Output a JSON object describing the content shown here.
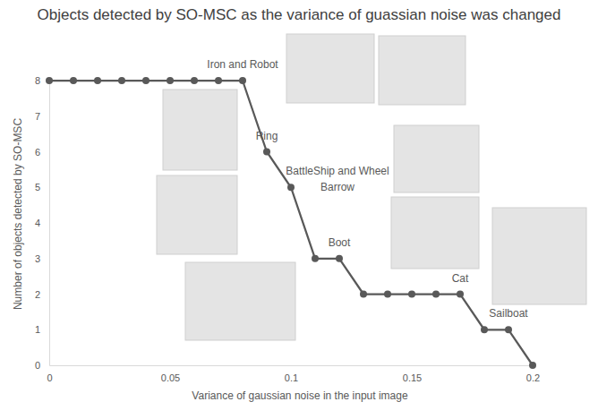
{
  "chart_data": {
    "type": "line",
    "title": "Objects detected by SO-MSC as the variance of guassian noise was changed",
    "x_label": "Variance of gaussian noise in the input image",
    "y_label": "Number of objects detected  by SO-MSC",
    "x": [
      0,
      0.01,
      0.02,
      0.03,
      0.04,
      0.05,
      0.06,
      0.07,
      0.08,
      0.09,
      0.1,
      0.11,
      0.12,
      0.13,
      0.14,
      0.15,
      0.16,
      0.17,
      0.18,
      0.19,
      0.2
    ],
    "values": [
      8,
      8,
      8,
      8,
      8,
      8,
      8,
      8,
      8,
      6,
      5,
      3,
      3,
      2,
      2,
      2,
      2,
      2,
      1,
      1,
      0
    ],
    "color": "#595959",
    "marker": "circle",
    "xlim": [
      0,
      0.2
    ],
    "xticks": [
      0,
      0.05,
      0.1,
      0.15,
      0.2
    ],
    "ylim": [
      0,
      8
    ],
    "yticks": [
      0,
      1,
      2,
      3,
      4,
      5,
      6,
      7,
      8
    ],
    "grid": false,
    "annotations": [
      {
        "text": "Iron and Robot",
        "x": 0.08,
        "y": 8
      },
      {
        "text": "Ring",
        "x": 0.09,
        "y": 6
      },
      {
        "text": "BattleShip and Wheel\nBarrow",
        "x": 0.1,
        "y": 5
      },
      {
        "text": "Boot",
        "x": 0.12,
        "y": 3
      },
      {
        "text": "Cat",
        "x": 0.17,
        "y": 2
      },
      {
        "text": "Sailboat",
        "x": 0.19,
        "y": 1
      }
    ]
  }
}
